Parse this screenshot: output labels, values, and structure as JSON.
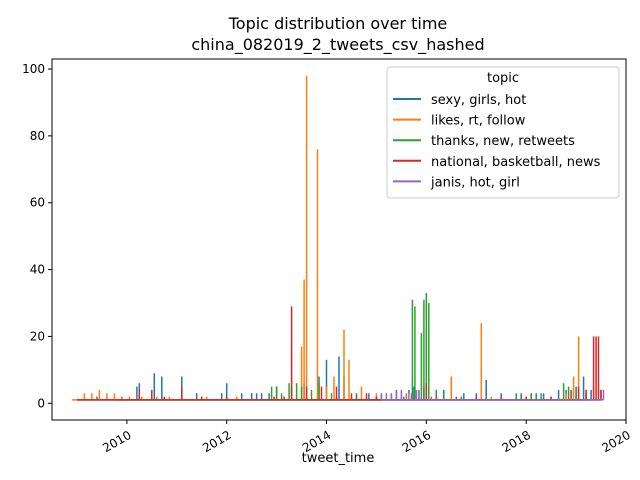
{
  "chart_data": {
    "type": "line",
    "title": "Topic distribution over time",
    "subtitle": "china_082019_2_tweets_csv_hashed",
    "xlabel": "tweet_time",
    "ylabel": "",
    "xlim": [
      2008.5,
      2020.0
    ],
    "ylim": [
      -5,
      103
    ],
    "x_ticks": [
      2010,
      2012,
      2014,
      2016,
      2018,
      2020
    ],
    "x_tick_labels": [
      "2010",
      "2012",
      "2014",
      "2016",
      "2018",
      "2020"
    ],
    "y_ticks": [
      0,
      20,
      40,
      60,
      80,
      100
    ],
    "y_tick_labels": [
      "0",
      "20",
      "40",
      "60",
      "80",
      "100"
    ],
    "grid": false,
    "legend": {
      "title": "topic",
      "position": "top-right"
    },
    "series": [
      {
        "name": "sexy, girls, hot",
        "color": "#1f77b4",
        "spikes": [
          [
            2009.0,
            1
          ],
          [
            2009.4,
            2
          ],
          [
            2009.9,
            2
          ],
          [
            2010.2,
            5
          ],
          [
            2010.25,
            6
          ],
          [
            2010.55,
            9
          ],
          [
            2010.7,
            8
          ],
          [
            2011.1,
            8
          ],
          [
            2011.4,
            3
          ],
          [
            2011.9,
            3
          ],
          [
            2012.0,
            6
          ],
          [
            2012.3,
            3
          ],
          [
            2012.5,
            3
          ],
          [
            2012.6,
            3
          ],
          [
            2012.7,
            3
          ],
          [
            2012.85,
            3
          ],
          [
            2013.0,
            5
          ],
          [
            2013.3,
            5
          ],
          [
            2013.55,
            6
          ],
          [
            2013.85,
            8
          ],
          [
            2014.0,
            13
          ],
          [
            2014.25,
            14
          ],
          [
            2014.35,
            8
          ],
          [
            2014.6,
            3
          ],
          [
            2014.85,
            3
          ],
          [
            2015.1,
            3
          ],
          [
            2015.4,
            4
          ],
          [
            2015.65,
            4
          ],
          [
            2015.75,
            5
          ],
          [
            2015.85,
            4
          ],
          [
            2015.95,
            5
          ],
          [
            2016.2,
            4
          ],
          [
            2016.35,
            4
          ],
          [
            2016.5,
            7
          ],
          [
            2016.75,
            3
          ],
          [
            2017.0,
            3
          ],
          [
            2017.2,
            7
          ],
          [
            2017.5,
            3
          ],
          [
            2017.9,
            3
          ],
          [
            2018.1,
            3
          ],
          [
            2018.2,
            3
          ],
          [
            2018.35,
            3
          ],
          [
            2018.65,
            4
          ],
          [
            2018.8,
            4
          ],
          [
            2019.0,
            5
          ],
          [
            2019.15,
            8
          ],
          [
            2019.3,
            4
          ],
          [
            2019.5,
            4
          ]
        ]
      },
      {
        "name": "likes, rt, follow",
        "color": "#ff7f0e",
        "spikes": [
          [
            2008.9,
            1
          ],
          [
            2009.15,
            3
          ],
          [
            2009.3,
            3
          ],
          [
            2009.45,
            4
          ],
          [
            2009.6,
            3
          ],
          [
            2009.75,
            3
          ],
          [
            2009.9,
            2
          ],
          [
            2010.05,
            2
          ],
          [
            2010.3,
            2
          ],
          [
            2010.6,
            2
          ],
          [
            2010.85,
            2
          ],
          [
            2011.6,
            2
          ],
          [
            2012.2,
            2
          ],
          [
            2013.1,
            2
          ],
          [
            2013.5,
            17
          ],
          [
            2013.55,
            37
          ],
          [
            2013.6,
            98
          ],
          [
            2013.82,
            76
          ],
          [
            2014.0,
            5
          ],
          [
            2014.15,
            8
          ],
          [
            2014.35,
            22
          ],
          [
            2014.45,
            13
          ],
          [
            2014.7,
            5
          ],
          [
            2015.0,
            3
          ],
          [
            2015.3,
            3
          ],
          [
            2015.65,
            3
          ],
          [
            2016.2,
            2
          ],
          [
            2016.5,
            8
          ],
          [
            2017.1,
            24
          ],
          [
            2017.3,
            2
          ],
          [
            2018.0,
            2
          ],
          [
            2018.5,
            2
          ],
          [
            2018.8,
            3
          ],
          [
            2018.95,
            8
          ],
          [
            2019.05,
            20
          ],
          [
            2019.2,
            4
          ],
          [
            2019.35,
            5
          ]
        ]
      },
      {
        "name": "thanks, new, retweets",
        "color": "#2ca02c",
        "spikes": [
          [
            2009.8,
            1
          ],
          [
            2011.0,
            1
          ],
          [
            2012.9,
            5
          ],
          [
            2013.0,
            5
          ],
          [
            2013.1,
            3
          ],
          [
            2013.25,
            6
          ],
          [
            2013.4,
            6
          ],
          [
            2013.5,
            5
          ],
          [
            2013.7,
            4
          ],
          [
            2013.85,
            6
          ],
          [
            2014.1,
            3
          ],
          [
            2014.6,
            2
          ],
          [
            2015.0,
            2
          ],
          [
            2015.55,
            2
          ],
          [
            2015.72,
            31
          ],
          [
            2015.77,
            29
          ],
          [
            2015.9,
            21
          ],
          [
            2015.95,
            31
          ],
          [
            2016.0,
            33
          ],
          [
            2016.05,
            30
          ],
          [
            2016.2,
            4
          ],
          [
            2016.35,
            3
          ],
          [
            2016.7,
            2
          ],
          [
            2017.2,
            2
          ],
          [
            2017.8,
            3
          ],
          [
            2018.1,
            3
          ],
          [
            2018.3,
            3
          ],
          [
            2018.75,
            6
          ],
          [
            2018.85,
            5
          ],
          [
            2019.0,
            3
          ],
          [
            2019.2,
            3
          ]
        ]
      },
      {
        "name": "national, basketball, news",
        "color": "#d62728",
        "spikes": [
          [
            2009.0,
            1
          ],
          [
            2010.25,
            4
          ],
          [
            2010.5,
            4
          ],
          [
            2010.75,
            2
          ],
          [
            2011.1,
            5
          ],
          [
            2011.5,
            2
          ],
          [
            2012.0,
            2
          ],
          [
            2012.3,
            1
          ],
          [
            2012.95,
            2
          ],
          [
            2013.15,
            2
          ],
          [
            2013.3,
            29
          ],
          [
            2013.6,
            5
          ],
          [
            2013.9,
            5
          ],
          [
            2014.2,
            5
          ],
          [
            2014.5,
            3
          ],
          [
            2014.8,
            3
          ],
          [
            2015.0,
            2
          ],
          [
            2015.5,
            2
          ],
          [
            2016.0,
            6
          ],
          [
            2016.2,
            2
          ],
          [
            2016.6,
            2
          ],
          [
            2017.0,
            2
          ],
          [
            2017.5,
            2
          ],
          [
            2018.0,
            2
          ],
          [
            2018.5,
            2
          ],
          [
            2018.9,
            4
          ],
          [
            2019.05,
            5
          ],
          [
            2019.2,
            4
          ],
          [
            2019.35,
            20
          ],
          [
            2019.4,
            20
          ],
          [
            2019.45,
            20
          ],
          [
            2019.5,
            4
          ]
        ]
      },
      {
        "name": "janis, hot, girl",
        "color": "#9467bd",
        "spikes": [
          [
            2015.1,
            3
          ],
          [
            2015.2,
            3
          ],
          [
            2015.3,
            3
          ],
          [
            2015.4,
            4
          ],
          [
            2015.5,
            4
          ],
          [
            2015.6,
            3
          ],
          [
            2015.7,
            3
          ],
          [
            2015.8,
            4
          ],
          [
            2015.85,
            4
          ],
          [
            2015.9,
            2
          ],
          [
            2016.1,
            2
          ],
          [
            2019.55,
            4
          ]
        ]
      }
    ]
  }
}
